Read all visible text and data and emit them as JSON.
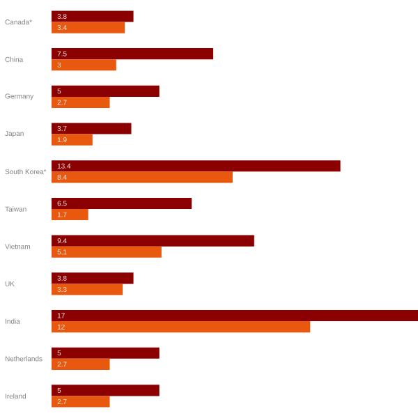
{
  "chart_data": {
    "type": "bar",
    "orientation": "horizontal",
    "categories": [
      "Canada*",
      "China",
      "Germany",
      "Japan",
      "South Korea*",
      "Taiwan",
      "Vietnam",
      "UK",
      "India",
      "Netherlands",
      "Ireland"
    ],
    "series": [
      {
        "color": "#8b0000",
        "values": [
          3.8,
          7.5,
          5,
          3.7,
          13.4,
          6.5,
          9.4,
          3.8,
          17,
          5,
          5
        ]
      },
      {
        "color": "#e8580f",
        "values": [
          3.4,
          3,
          2.7,
          1.9,
          8.4,
          1.7,
          5.1,
          3.3,
          12,
          2.7,
          2.7
        ]
      }
    ],
    "xlim": [
      0,
      17
    ],
    "data_labels": true,
    "tick_labels": "y"
  }
}
